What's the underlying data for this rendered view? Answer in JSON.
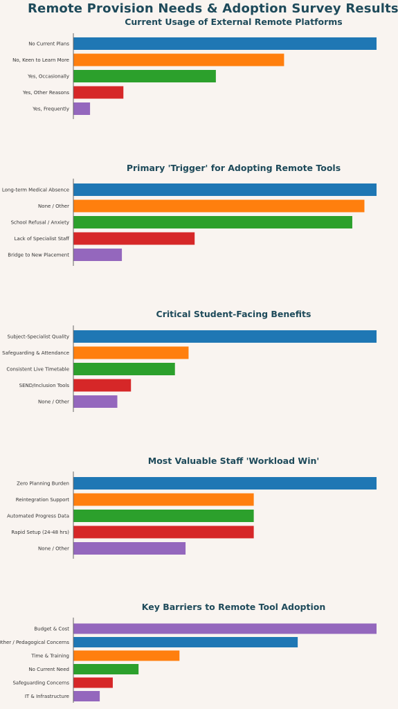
{
  "title": "Remote Provision Needs & Adoption Survey Results",
  "chart_data": [
    {
      "type": "bar",
      "orientation": "horizontal",
      "title": "Current Usage of External Remote Platforms",
      "categories": [
        "No Current Plans",
        "No, Keen to Learn More",
        "Yes, Occasionally",
        "Yes, Other Reasons",
        "Yes, Frequently"
      ],
      "values": [
        100,
        69.5,
        47,
        16.5,
        5.5
      ],
      "colors": [
        "#1f77b4",
        "#ff7f0e",
        "#2ca02c",
        "#d62728",
        "#9467bd"
      ],
      "xlim": [
        0,
        100
      ]
    },
    {
      "type": "bar",
      "orientation": "horizontal",
      "title": "Primary 'Trigger' for Adopting Remote Tools",
      "categories": [
        "Long-term Medical Absence",
        "None / Other",
        "School Refusal / Anxiety",
        "Lack of Specialist Staff",
        "Bridge to New Placement"
      ],
      "values": [
        100,
        96,
        92,
        40,
        16
      ],
      "colors": [
        "#1f77b4",
        "#ff7f0e",
        "#2ca02c",
        "#d62728",
        "#9467bd"
      ],
      "xlim": [
        0,
        100
      ]
    },
    {
      "type": "bar",
      "orientation": "horizontal",
      "title": "Critical Student-Facing Benefits",
      "categories": [
        "Subject-Specialist Quality",
        "Safeguarding & Attendance",
        "Consistent Live Timetable",
        "SEND/Inclusion Tools",
        "None / Other"
      ],
      "values": [
        100,
        38,
        33.5,
        19,
        14.5
      ],
      "colors": [
        "#1f77b4",
        "#ff7f0e",
        "#2ca02c",
        "#d62728",
        "#9467bd"
      ],
      "xlim": [
        0,
        100
      ]
    },
    {
      "type": "bar",
      "orientation": "horizontal",
      "title": "Most Valuable Staff 'Workload Win'",
      "categories": [
        "Zero Planning Burden",
        "Reintegration Support",
        "Automated Progress Data",
        "Rapid Setup (24-48 hrs)",
        "None / Other"
      ],
      "values": [
        100,
        59.5,
        59.5,
        59.5,
        37
      ],
      "colors": [
        "#1f77b4",
        "#ff7f0e",
        "#2ca02c",
        "#d62728",
        "#9467bd"
      ],
      "xlim": [
        0,
        100
      ]
    },
    {
      "type": "bar",
      "orientation": "horizontal",
      "title": "Key Barriers to Remote Tool Adoption",
      "categories": [
        "Budget & Cost",
        "Other / Pedagogical Concerns",
        "Time & Training",
        "No Current Need",
        "Safeguarding Concerns",
        "IT & Infrastructure"
      ],
      "values": [
        100,
        74,
        35,
        21.5,
        13,
        8.7
      ],
      "colors": [
        "#9467bd",
        "#1f77b4",
        "#ff7f0e",
        "#2ca02c",
        "#d62728",
        "#9467bd"
      ],
      "xlim": [
        0,
        100
      ]
    }
  ]
}
